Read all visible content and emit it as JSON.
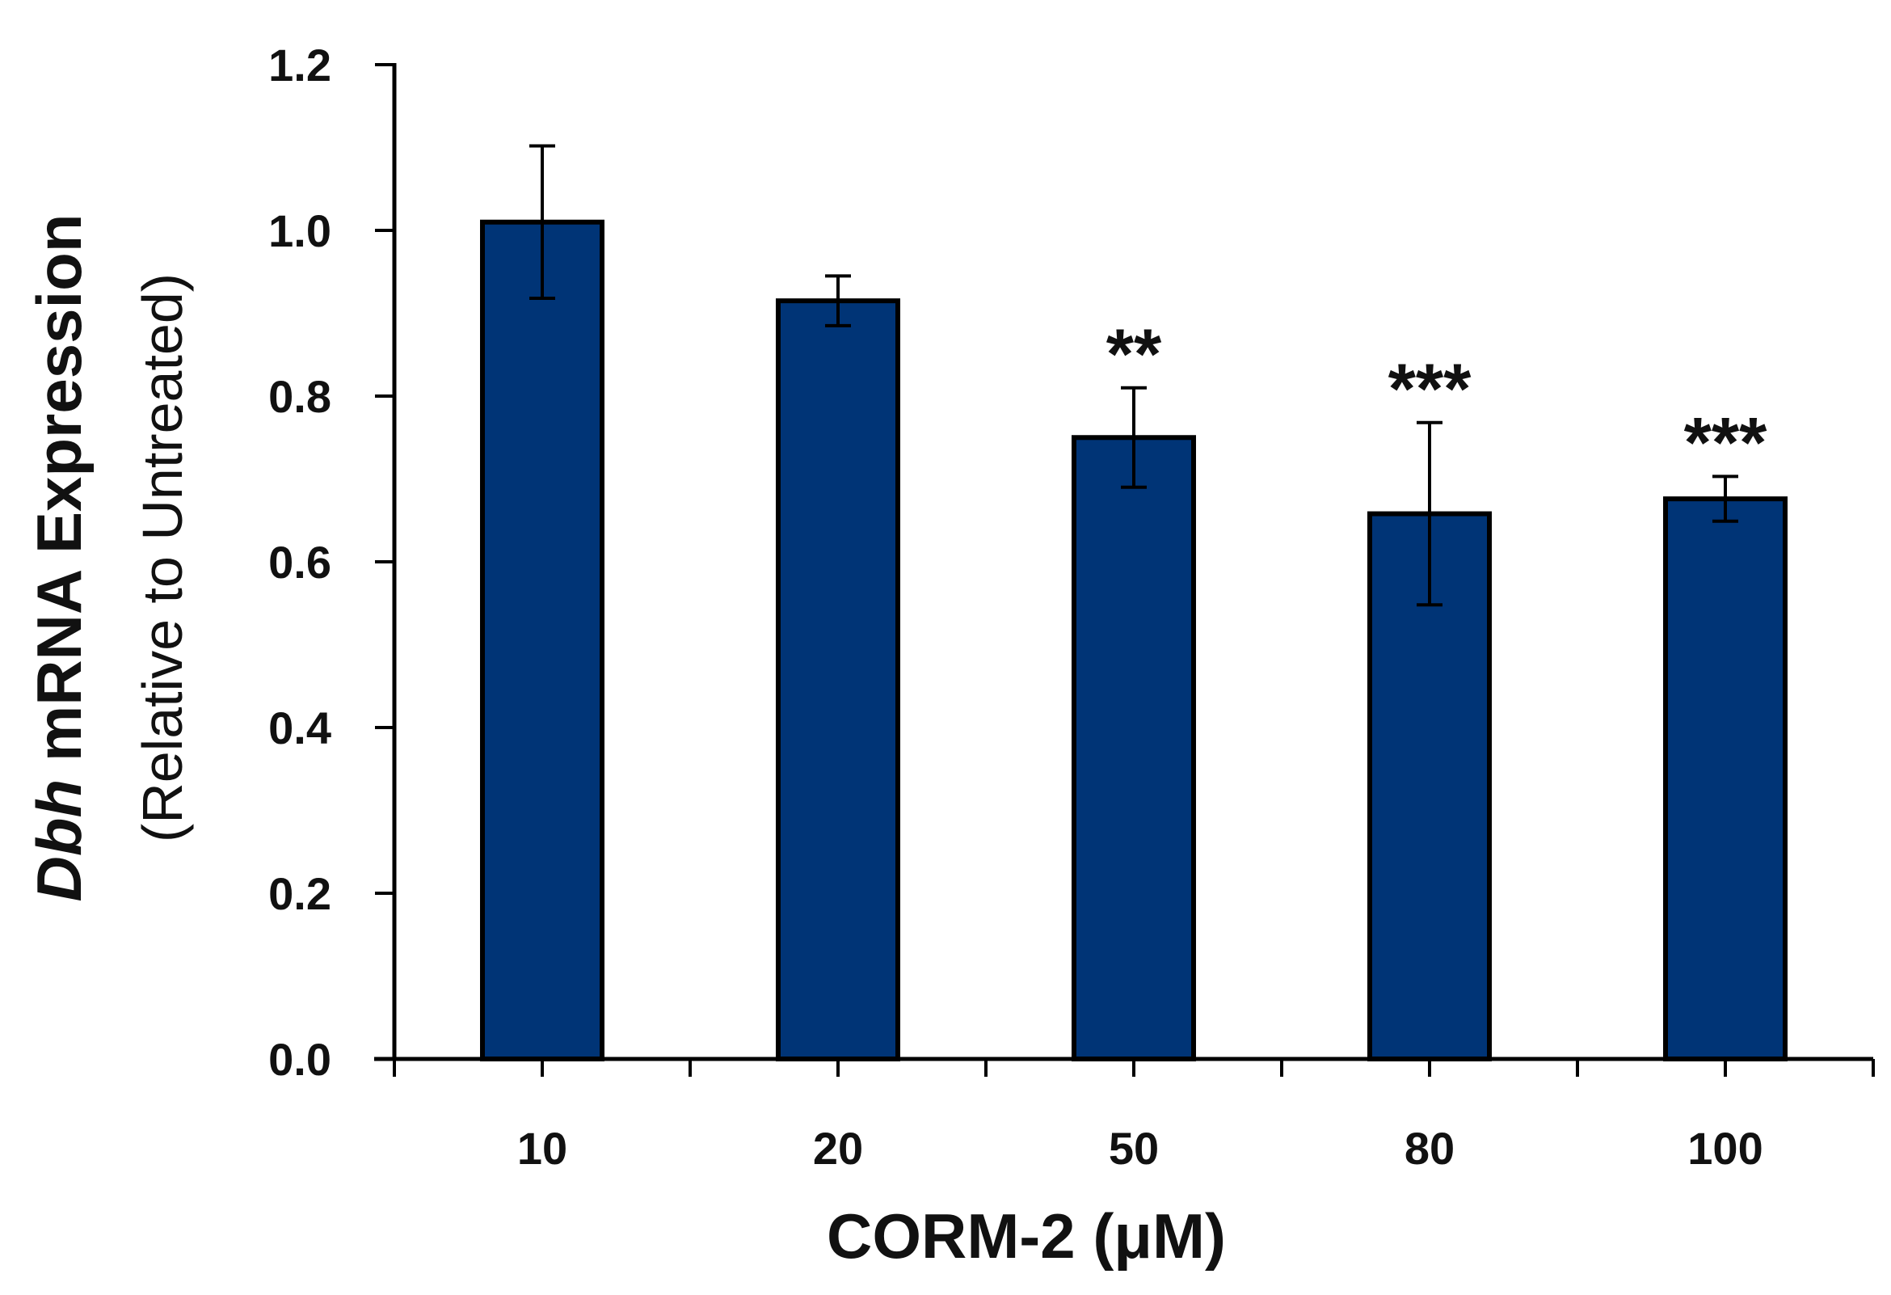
{
  "chart_data": {
    "type": "bar",
    "title": "",
    "categories": [
      "10",
      "20",
      "50",
      "80",
      "100"
    ],
    "values": [
      1.01,
      0.915,
      0.75,
      0.658,
      0.676
    ],
    "errors": [
      0.092,
      0.03,
      0.06,
      0.11,
      0.027
    ],
    "significance": [
      "",
      "",
      "**",
      "***",
      "***"
    ],
    "xlabel": "CORM-2 (μM)",
    "ylabel": {
      "gene": "Dbh",
      "main": " mRNA Expression",
      "sub": "(Relative to Untreated)"
    },
    "ylim": [
      0,
      1.2
    ],
    "yticks": [
      "0.0",
      "0.2",
      "0.4",
      "0.6",
      "0.8",
      "1.0",
      "1.2"
    ],
    "bar_color": "#003476",
    "edge_color": "#000000",
    "grid": false,
    "legend": "none"
  }
}
